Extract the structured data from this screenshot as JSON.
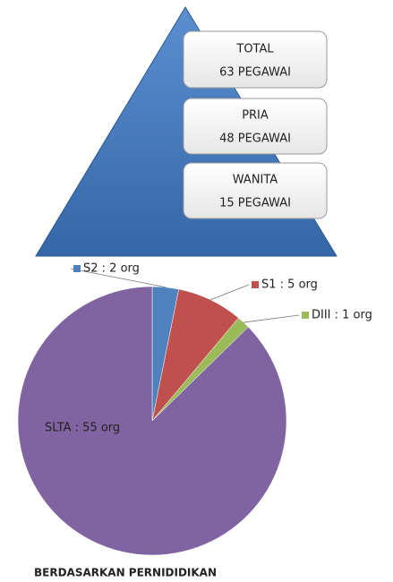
{
  "pyramid": {
    "boxes": [
      {
        "label": "TOTAL",
        "value": "63 PEGAWAI"
      },
      {
        "label": "PRIA",
        "value": "48 PEGAWAI"
      },
      {
        "label": "WANITA",
        "value": "15 PEGAWAI"
      }
    ]
  },
  "chart_data": {
    "type": "pie",
    "title": "BERDASARKAN PERNIDIDIKAN",
    "values": [
      2,
      5,
      1,
      55
    ],
    "value_labels": [
      "S2 : 2 org",
      "S1 : 5 org",
      "DIII  : 1 org",
      "SLTA : 55 org"
    ],
    "colors": [
      "#4f81bd",
      "#c0504d",
      "#9bbb59",
      "#8064a2"
    ]
  }
}
